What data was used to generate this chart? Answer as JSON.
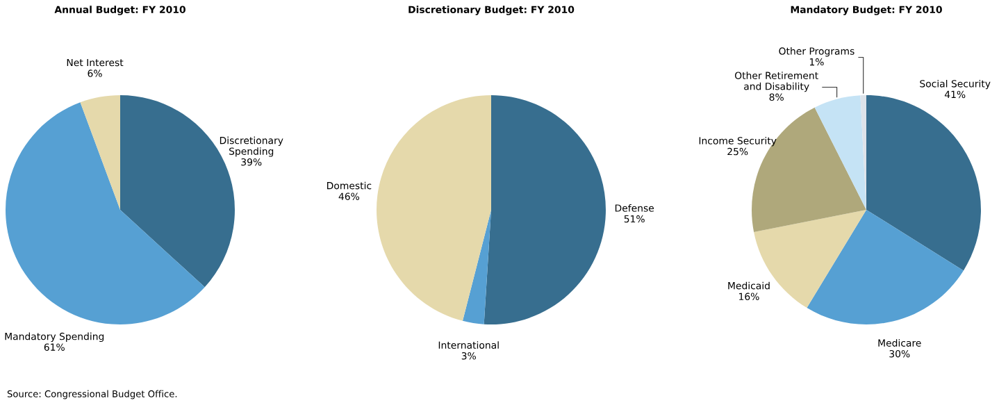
{
  "chart_data": [
    {
      "type": "pie",
      "title": "Annual Budget: FY 2010",
      "categories": [
        "Discretionary\nSpending",
        "Mandatory Spending",
        "Net Interest"
      ],
      "values": [
        39,
        61,
        6
      ],
      "colors": [
        "#376e8f",
        "#56a0d3",
        "#e5d9ab"
      ],
      "value_labels": [
        "39%",
        "61%",
        "6%"
      ],
      "annotations": [
        "Source: Congressional Budget Office."
      ]
    },
    {
      "type": "pie",
      "title": "Discretionary Budget: FY 2010",
      "categories": [
        "Defense",
        "International",
        "Domestic"
      ],
      "values": [
        51,
        3,
        46
      ],
      "colors": [
        "#376e8f",
        "#56a0d3",
        "#e5d9ab"
      ],
      "value_labels": [
        "51%",
        "3%",
        "46%"
      ]
    },
    {
      "type": "pie",
      "title": "Mandatory Budget: FY 2010",
      "categories": [
        "Social Security",
        "Medicare",
        "Medicaid",
        "Income Security",
        "Other Retirement\nand Disability",
        "Other Programs"
      ],
      "values": [
        41,
        30,
        16,
        25,
        8,
        1
      ],
      "colors": [
        "#376e8f",
        "#56a0d3",
        "#e5d9ab",
        "#afa87b",
        "#c5e3f5",
        "#dde3ea"
      ],
      "value_labels": [
        "41%",
        "30%",
        "16%",
        "25%",
        "8%",
        "1%"
      ]
    }
  ]
}
